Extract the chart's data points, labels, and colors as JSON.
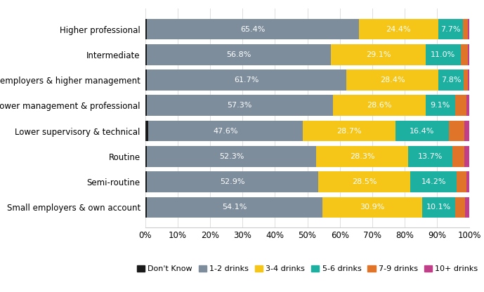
{
  "categories": [
    "Higher professional",
    "Intermediate",
    "Large employers & higher management",
    "Lower management & professional",
    "Lower supervisory & technical",
    "Routine",
    "Semi-routine",
    "Small employers & own account"
  ],
  "series": {
    "Don't Know": [
      0.5,
      0.5,
      0.4,
      0.5,
      0.9,
      0.5,
      0.4,
      0.5
    ],
    "1-2 drinks": [
      65.4,
      56.8,
      61.7,
      57.3,
      47.6,
      52.3,
      52.9,
      54.1
    ],
    "3-4 drinks": [
      24.4,
      29.1,
      28.4,
      28.6,
      28.7,
      28.3,
      28.5,
      30.9
    ],
    "5-6 drinks": [
      7.7,
      11.0,
      7.8,
      9.1,
      16.4,
      13.7,
      14.2,
      10.1
    ],
    "7-9 drinks": [
      1.5,
      2.1,
      1.2,
      3.5,
      4.8,
      3.7,
      3.0,
      3.1
    ],
    "10+ drinks": [
      0.5,
      0.5,
      0.4,
      1.0,
      1.6,
      1.5,
      1.0,
      1.3
    ]
  },
  "colors": {
    "Don't Know": "#1a1a1a",
    "1-2 drinks": "#7d8d9c",
    "3-4 drinks": "#f5c518",
    "5-6 drinks": "#1db0a0",
    "7-9 drinks": "#e07428",
    "10+ drinks": "#bf3f88"
  },
  "legend_order": [
    "Don't Know",
    "1-2 drinks",
    "3-4 drinks",
    "5-6 drinks",
    "7-9 drinks",
    "10+ drinks"
  ],
  "xlim": [
    0,
    100
  ],
  "xticks": [
    0,
    10,
    20,
    30,
    40,
    50,
    60,
    70,
    80,
    90,
    100
  ],
  "xticklabels": [
    "0%",
    "10%",
    "20%",
    "30%",
    "40%",
    "50%",
    "60%",
    "70%",
    "80%",
    "90%",
    "100%"
  ],
  "background_color": "#ffffff",
  "bar_label_color": "#ffffff",
  "label_fontsize": 8,
  "tick_fontsize": 8.5,
  "legend_fontsize": 8,
  "bar_height": 0.82
}
